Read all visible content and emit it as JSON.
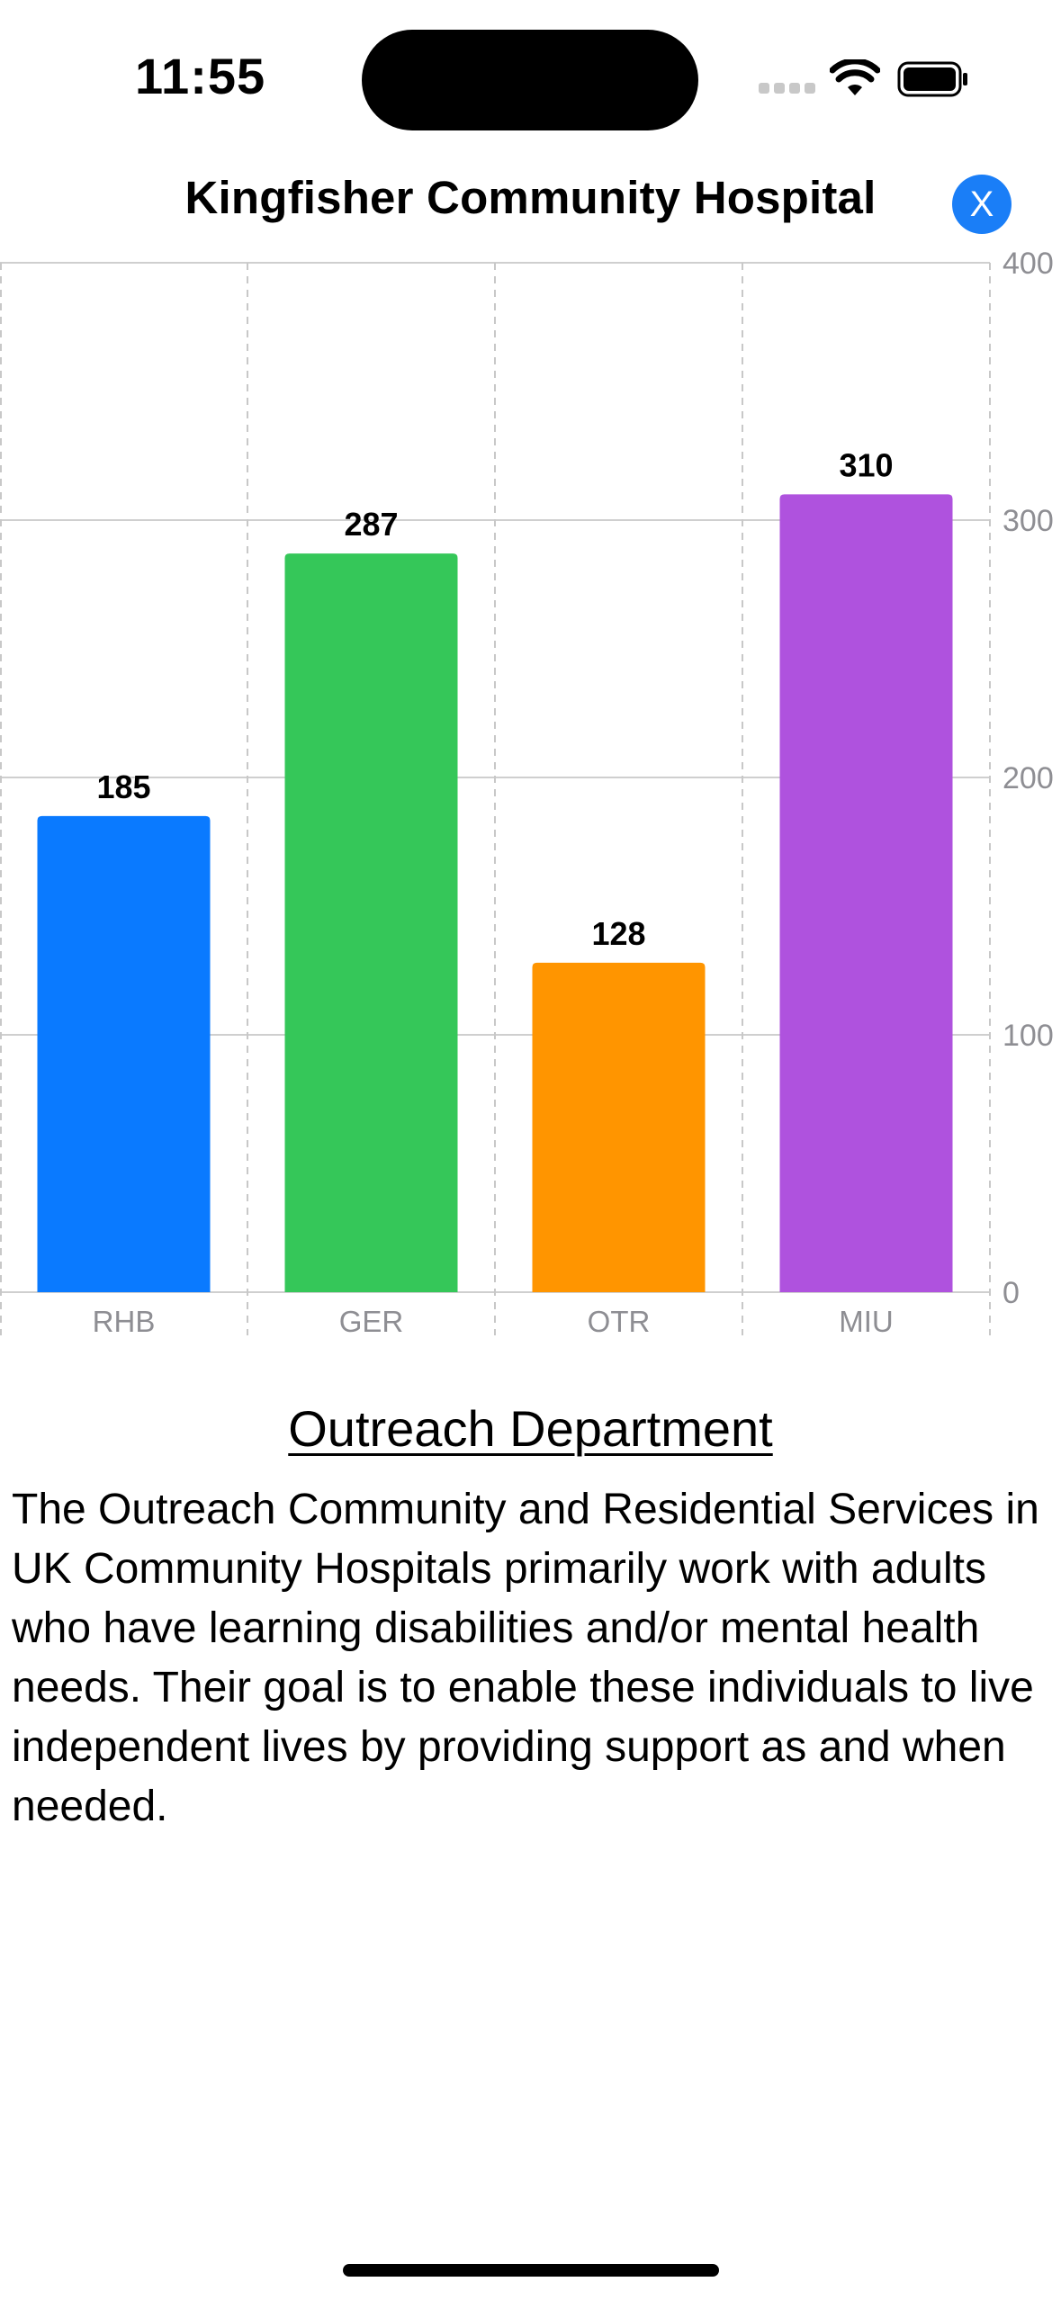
{
  "status_bar": {
    "time": "11:55"
  },
  "header": {
    "title": "Kingfisher Community Hospital",
    "close_label": "X"
  },
  "chart_data": {
    "type": "bar",
    "categories": [
      "RHB",
      "GER",
      "OTR",
      "MIU"
    ],
    "values": [
      185,
      287,
      128,
      310
    ],
    "colors": [
      "#0a7aff",
      "#35c759",
      "#ff9500",
      "#af52de"
    ],
    "ylim": [
      0,
      400
    ],
    "yticks": [
      0,
      100,
      200,
      300,
      400
    ],
    "y_axis_position": "right",
    "grid": true,
    "data_labels": true
  },
  "department": {
    "title": "Outreach Department",
    "description": "The Outreach Community and Residential Services in UK Community Hospitals primarily work with adults who have learning disabilities and/or mental health needs. Their goal is to enable these individuals to live independent lives by providing support as and when needed."
  }
}
